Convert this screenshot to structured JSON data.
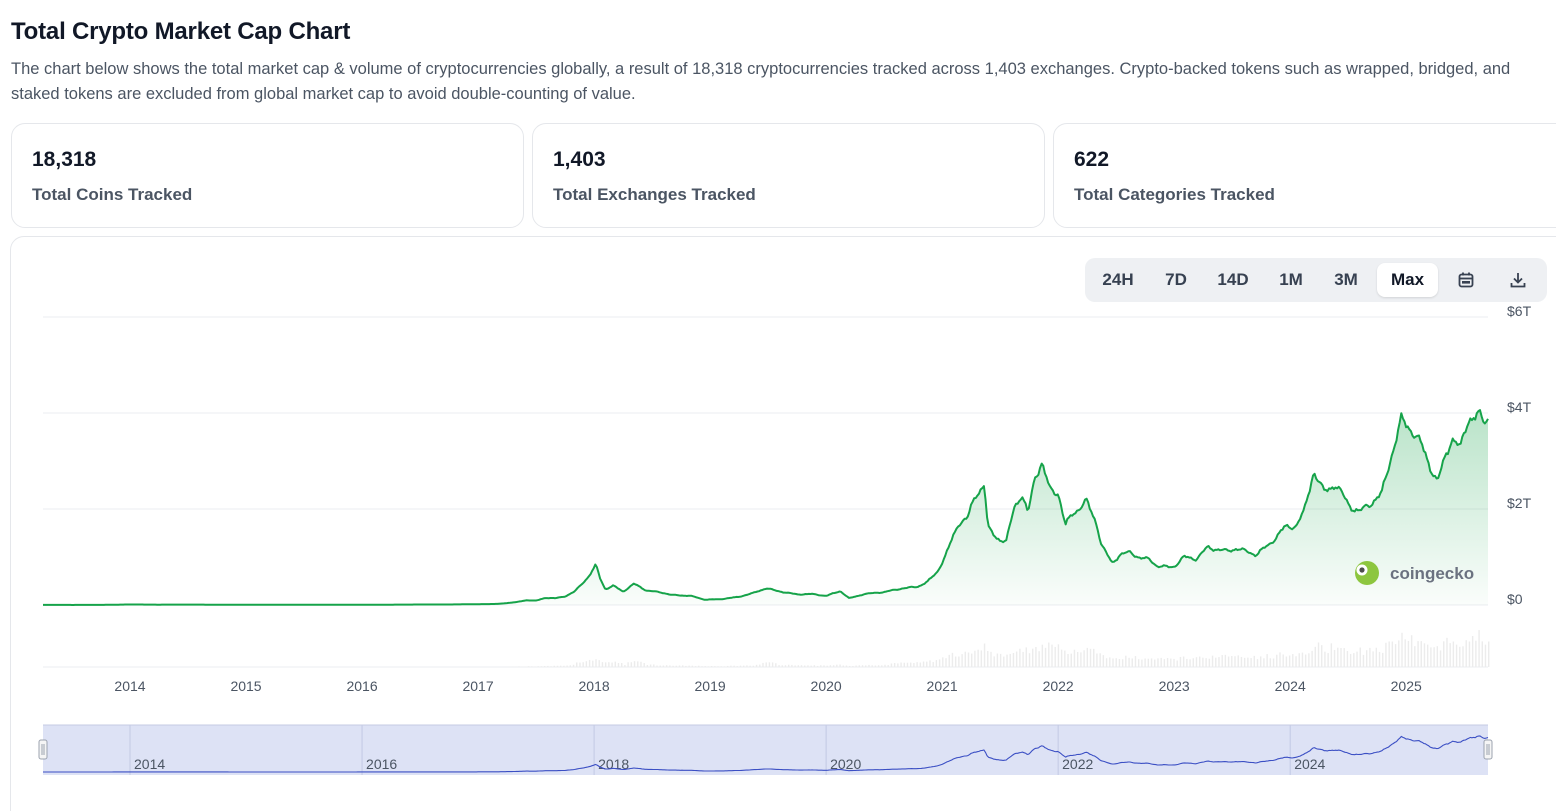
{
  "page": {
    "title": "Total Crypto Market Cap Chart",
    "description": "The chart below shows the total market cap & volume of cryptocurrencies globally, a result of 18,318 cryptocurrencies tracked across 1,403 exchanges. Crypto-backed tokens such as wrapped, bridged, and staked tokens are excluded from global market cap to avoid double-counting of value."
  },
  "stats": [
    {
      "value": "18,318",
      "label": "Total Coins Tracked"
    },
    {
      "value": "1,403",
      "label": "Total Exchanges Tracked"
    },
    {
      "value": "622",
      "label": "Total Categories Tracked"
    }
  ],
  "range_buttons": [
    {
      "label": "24H",
      "active": false
    },
    {
      "label": "7D",
      "active": false
    },
    {
      "label": "14D",
      "active": false
    },
    {
      "label": "1M",
      "active": false
    },
    {
      "label": "3M",
      "active": false
    },
    {
      "label": "Max",
      "active": true
    }
  ],
  "icons": {
    "calendar": "calendar-icon",
    "download": "download-icon"
  },
  "brand": {
    "name": "coingecko"
  },
  "colors": {
    "line": "#16a34a",
    "area_top": "#c9eccf",
    "volume": "#ececec",
    "navigator_bg": "#dde2f5",
    "navigator_line": "#3b4fc4",
    "grid": "#ebedf0"
  },
  "chart_data": {
    "type": "line",
    "title": "",
    "ylabel": "",
    "xlabel": "",
    "ylim": [
      0,
      6
    ],
    "y_unit": "trillion USD",
    "y_ticks": [
      "$0",
      "$2T",
      "$4T",
      "$6T"
    ],
    "x_ticks": [
      "2014",
      "2015",
      "2016",
      "2017",
      "2018",
      "2019",
      "2020",
      "2021",
      "2022",
      "2023",
      "2024",
      "2025"
    ],
    "navigator_ticks": [
      "2014",
      "2016",
      "2018",
      "2020",
      "2022",
      "2024"
    ],
    "grid": true,
    "series": [
      {
        "x": [
          "2013-04",
          "2013-07",
          "2013-10",
          "2014-01",
          "2014-04",
          "2014-07",
          "2014-10",
          "2015-01",
          "2015-04",
          "2015-07",
          "2015-10",
          "2016-01",
          "2016-04",
          "2016-07",
          "2016-10",
          "2017-01",
          "2017-03",
          "2017-05",
          "2017-06",
          "2017-07",
          "2017-08",
          "2017-09",
          "2017-10",
          "2017-11",
          "2017-12-15",
          "2018-01-07",
          "2018-01-20",
          "2018-02-06",
          "2018-03-01",
          "2018-04-01",
          "2018-05-05",
          "2018-06-15",
          "2018-08-01",
          "2018-09-01",
          "2018-11-01",
          "2018-12-15",
          "2019-02-01",
          "2019-04-01",
          "2019-05-15",
          "2019-06-26",
          "2019-08-01",
          "2019-10-01",
          "2019-11-15",
          "2020-01-01",
          "2020-02-15",
          "2020-03-13",
          "2020-05-01",
          "2020-07-01",
          "2020-09-01",
          "2020-10-15",
          "2020-11-15",
          "2020-12-15",
          "2021-01-10",
          "2021-02-01",
          "2021-02-21",
          "2021-03-20",
          "2021-04-15",
          "2021-05-12",
          "2021-05-23",
          "2021-06-22",
          "2021-07-20",
          "2021-08-15",
          "2021-09-07",
          "2021-09-28",
          "2021-10-20",
          "2021-11-10",
          "2021-12-05",
          "2022-01-01",
          "2022-01-24",
          "2022-02-15",
          "2022-03-30",
          "2022-05-01",
          "2022-05-15",
          "2022-06-18",
          "2022-07-15",
          "2022-08-15",
          "2022-09-15",
          "2022-10-15",
          "2022-11-09",
          "2022-12-15",
          "2023-01-01",
          "2023-02-01",
          "2023-03-10",
          "2023-04-15",
          "2023-06-15",
          "2023-07-15",
          "2023-09-15",
          "2023-10-25",
          "2023-12-15",
          "2024-01-20",
          "2024-02-15",
          "2024-03-14",
          "2024-04-15",
          "2024-05-20",
          "2024-07-05",
          "2024-08-05",
          "2024-09-06",
          "2024-10-15",
          "2024-11-12",
          "2024-12-17",
          "2025-01-20",
          "2025-02-20",
          "2025-04-08",
          "2025-05-22",
          "2025-06-20",
          "2025-07-14",
          "2025-08-14",
          "2025-09-01",
          "2025-09-15"
        ],
        "y": [
          0.002,
          0.001,
          0.002,
          0.011,
          0.007,
          0.009,
          0.006,
          0.005,
          0.004,
          0.005,
          0.004,
          0.006,
          0.007,
          0.01,
          0.011,
          0.017,
          0.022,
          0.06,
          0.1,
          0.09,
          0.15,
          0.14,
          0.18,
          0.28,
          0.6,
          0.83,
          0.56,
          0.33,
          0.4,
          0.28,
          0.44,
          0.3,
          0.26,
          0.21,
          0.19,
          0.11,
          0.12,
          0.17,
          0.25,
          0.35,
          0.29,
          0.22,
          0.23,
          0.19,
          0.29,
          0.14,
          0.23,
          0.27,
          0.35,
          0.38,
          0.48,
          0.68,
          1.0,
          1.35,
          1.7,
          1.8,
          2.3,
          2.5,
          1.6,
          1.4,
          1.3,
          2.05,
          2.3,
          1.9,
          2.7,
          2.95,
          2.4,
          2.35,
          1.65,
          1.9,
          2.15,
          1.7,
          1.25,
          0.88,
          1.05,
          1.1,
          0.98,
          0.95,
          0.81,
          0.79,
          0.8,
          1.0,
          0.96,
          1.2,
          1.12,
          1.18,
          1.05,
          1.25,
          1.62,
          1.65,
          1.95,
          2.8,
          2.35,
          2.52,
          2.08,
          1.93,
          2.1,
          2.3,
          3.05,
          3.85,
          3.65,
          3.3,
          2.55,
          3.5,
          3.25,
          3.9,
          3.95,
          3.8,
          3.9
        ]
      }
    ]
  }
}
